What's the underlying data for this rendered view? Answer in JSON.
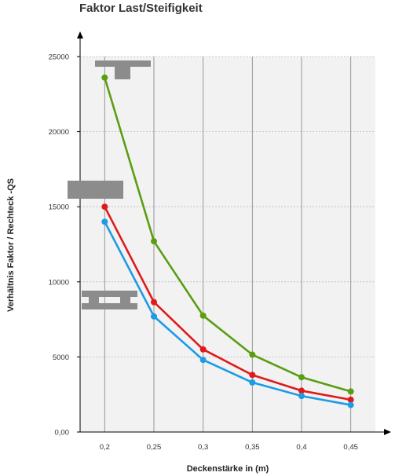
{
  "chart_data": {
    "type": "line",
    "title": "Faktor Last/Steifigkeit",
    "xlabel": "Deckenstärke in (m)",
    "ylabel": "Verhältnis Faktor / Rechteck -QS",
    "x": [
      0.2,
      0.25,
      0.3,
      0.35,
      0.4,
      0.45
    ],
    "x_tick_labels": [
      "0,2",
      "0,25",
      "0,3",
      "0,35",
      "0,4",
      "0,45"
    ],
    "y_ticks": [
      0,
      5000,
      10000,
      15000,
      20000,
      25000
    ],
    "y_tick_labels": [
      "0,00",
      "5000",
      "10000",
      "15000",
      "20000",
      "25000"
    ],
    "xlim": [
      0.175,
      0.475
    ],
    "ylim": [
      0,
      25000
    ],
    "grid": true,
    "series": [
      {
        "values": [
          23600,
          12700,
          7750,
          5150,
          3650,
          2700
        ],
        "color": "#5a9e12",
        "marker_shape": "t-section-icon"
      },
      {
        "values": [
          15000,
          8650,
          5500,
          3800,
          2750,
          2150
        ],
        "color": "#e01a1a",
        "marker_shape": "rectangle-section-icon"
      },
      {
        "values": [
          14000,
          7700,
          4800,
          3300,
          2400,
          1800
        ],
        "color": "#1e9be4",
        "marker_shape": "i-beam-section-icon"
      }
    ],
    "colors": {
      "plot_background": "#f2f2f2",
      "grid": "#8c8c8c",
      "axis": "#000000",
      "shape": "#8c8c8c"
    }
  }
}
